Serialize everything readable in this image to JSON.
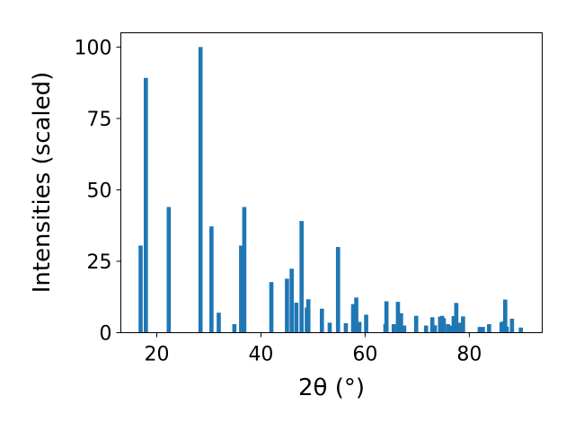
{
  "chart_data": {
    "type": "bar",
    "title": "",
    "xlabel": "2θ (°)",
    "ylabel": "Intensities (scaled)",
    "xlim": [
      13.1,
      94.0
    ],
    "ylim": [
      0,
      105
    ],
    "xticks": [
      20,
      40,
      60,
      80
    ],
    "yticks": [
      0,
      25,
      50,
      75,
      100
    ],
    "grid": false,
    "color": "#1f77b4",
    "bar_width": 0.8,
    "x": [
      16.9,
      17.9,
      22.3,
      28.4,
      30.5,
      31.9,
      34.9,
      36.2,
      36.8,
      42.0,
      45.0,
      45.9,
      46.8,
      47.8,
      48.8,
      49.1,
      51.7,
      53.2,
      54.8,
      56.3,
      57.7,
      58.3,
      58.9,
      60.2,
      63.9,
      64.1,
      65.5,
      66.3,
      66.9,
      67.5,
      69.8,
      71.7,
      72.9,
      73.4,
      74.4,
      74.8,
      75.1,
      75.9,
      76.5,
      77.0,
      77.5,
      78.2,
      78.8,
      82.0,
      82.6,
      83.8,
      86.2,
      86.6,
      86.9,
      87.2,
      88.2,
      89.9
    ],
    "values": [
      30.5,
      89.2,
      44.0,
      100.0,
      37.2,
      7.0,
      3.0,
      30.5,
      44.0,
      17.7,
      18.9,
      22.4,
      10.5,
      39.1,
      8.8,
      11.7,
      8.4,
      3.5,
      30.0,
      3.3,
      10.0,
      12.3,
      3.8,
      6.3,
      3.0,
      11.0,
      3.0,
      10.8,
      6.8,
      2.5,
      5.9,
      2.5,
      5.4,
      2.6,
      5.6,
      5.9,
      5.1,
      3.0,
      2.5,
      5.8,
      10.4,
      3.5,
      5.7,
      2.0,
      2.0,
      3.0,
      3.7,
      4.0,
      11.6,
      2.1,
      4.9,
      1.8
    ]
  }
}
